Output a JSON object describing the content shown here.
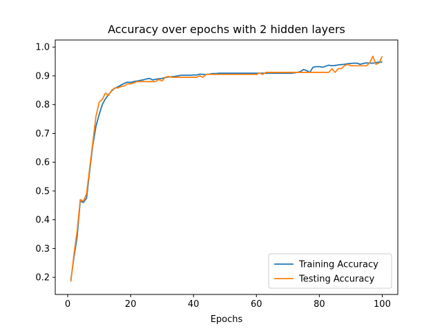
{
  "chart_data": {
    "type": "line",
    "title": "Accuracy over epochs with 2 hidden layers",
    "xlabel": "Epochs",
    "ylabel": "",
    "xlim": [
      -3.95,
      104.95
    ],
    "ylim": [
      0.1405,
      1.0245
    ],
    "xticks": [
      0,
      20,
      40,
      60,
      80,
      100
    ],
    "yticks": [
      0.2,
      0.3,
      0.4,
      0.5,
      0.6,
      0.7,
      0.8,
      0.9,
      1.0
    ],
    "grid": false,
    "legend_position": "lower-right",
    "x": [
      1,
      2,
      3,
      4,
      5,
      6,
      7,
      8,
      9,
      10,
      11,
      12,
      13,
      14,
      15,
      16,
      17,
      18,
      19,
      20,
      21,
      22,
      23,
      24,
      25,
      26,
      27,
      28,
      29,
      30,
      31,
      32,
      33,
      34,
      35,
      36,
      37,
      38,
      39,
      40,
      41,
      42,
      43,
      44,
      45,
      46,
      47,
      48,
      49,
      50,
      51,
      52,
      53,
      54,
      55,
      56,
      57,
      58,
      59,
      60,
      61,
      62,
      63,
      64,
      65,
      66,
      67,
      68,
      69,
      70,
      71,
      72,
      73,
      74,
      75,
      76,
      77,
      78,
      79,
      80,
      81,
      82,
      83,
      84,
      85,
      86,
      87,
      88,
      89,
      90,
      91,
      92,
      93,
      94,
      95,
      96,
      97,
      98,
      99,
      100
    ],
    "series": [
      {
        "name": "Training Accuracy",
        "color": "#1f77b4",
        "values": [
          0.19,
          0.27,
          0.34,
          0.465,
          0.46,
          0.475,
          0.57,
          0.66,
          0.725,
          0.765,
          0.8,
          0.82,
          0.835,
          0.848,
          0.857,
          0.862,
          0.868,
          0.874,
          0.878,
          0.877,
          0.88,
          0.882,
          0.884,
          0.886,
          0.889,
          0.891,
          0.886,
          0.888,
          0.89,
          0.891,
          0.894,
          0.896,
          0.897,
          0.898,
          0.9,
          0.902,
          0.902,
          0.902,
          0.902,
          0.903,
          0.903,
          0.906,
          0.905,
          0.905,
          0.906,
          0.908,
          0.908,
          0.909,
          0.909,
          0.909,
          0.909,
          0.909,
          0.909,
          0.909,
          0.909,
          0.909,
          0.909,
          0.909,
          0.909,
          0.909,
          0.909,
          0.909,
          0.909,
          0.909,
          0.909,
          0.909,
          0.909,
          0.909,
          0.909,
          0.909,
          0.909,
          0.91,
          0.912,
          0.915,
          0.922,
          0.918,
          0.912,
          0.93,
          0.932,
          0.932,
          0.93,
          0.933,
          0.937,
          0.935,
          0.936,
          0.938,
          0.939,
          0.94,
          0.942,
          0.943,
          0.944,
          0.944,
          0.94,
          0.943,
          0.945,
          0.944,
          0.944,
          0.946,
          0.948,
          0.948
        ]
      },
      {
        "name": "Testing Accuracy",
        "color": "#ff7f0e",
        "values": [
          0.185,
          0.28,
          0.36,
          0.47,
          0.465,
          0.49,
          0.58,
          0.67,
          0.76,
          0.808,
          0.818,
          0.84,
          0.832,
          0.85,
          0.858,
          0.858,
          0.863,
          0.865,
          0.872,
          0.872,
          0.875,
          0.88,
          0.88,
          0.88,
          0.88,
          0.88,
          0.88,
          0.88,
          0.888,
          0.882,
          0.895,
          0.898,
          0.895,
          0.895,
          0.895,
          0.895,
          0.895,
          0.895,
          0.895,
          0.895,
          0.895,
          0.9,
          0.895,
          0.905,
          0.905,
          0.905,
          0.905,
          0.905,
          0.905,
          0.905,
          0.905,
          0.905,
          0.905,
          0.905,
          0.905,
          0.905,
          0.905,
          0.905,
          0.905,
          0.905,
          0.91,
          0.905,
          0.912,
          0.912,
          0.912,
          0.912,
          0.912,
          0.912,
          0.912,
          0.912,
          0.912,
          0.912,
          0.912,
          0.912,
          0.912,
          0.912,
          0.912,
          0.912,
          0.912,
          0.912,
          0.912,
          0.912,
          0.912,
          0.925,
          0.912,
          0.925,
          0.925,
          0.935,
          0.94,
          0.935,
          0.935,
          0.935,
          0.935,
          0.935,
          0.935,
          0.945,
          0.968,
          0.94,
          0.945,
          0.968
        ]
      }
    ]
  }
}
